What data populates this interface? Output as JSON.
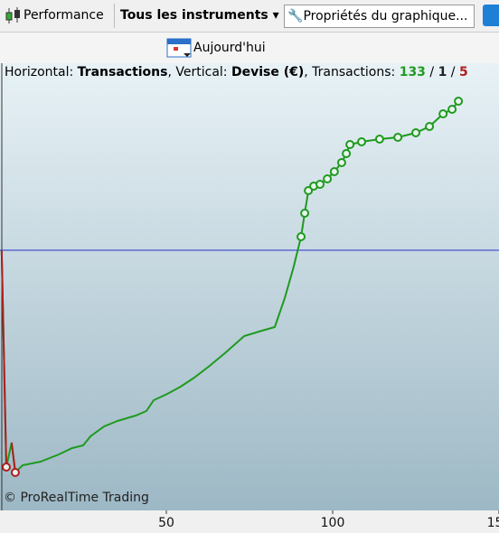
{
  "toolbar": {
    "performance": "Performance",
    "instruments": "Tous les instruments",
    "properties": "Propriétés du graphique..."
  },
  "date_button": "Aujourd'hui",
  "info": {
    "h_label": "Horizontal: ",
    "h_value": "Transactions",
    "v_label": ", Vertical: ",
    "v_value": "Devise (€)",
    "t_label": ", Transactions: ",
    "total": 133,
    "sep": " / ",
    "neutral": 1,
    "losing": 5
  },
  "chart_data": {
    "type": "line",
    "copyright": "© ProRealTime Trading",
    "x": [
      0.5,
      1.9,
      3.5,
      4.6,
      6.8,
      12.2,
      17.7,
      21.7,
      25,
      27.2,
      31.3,
      35.3,
      40.8,
      44,
      46.2,
      50.3,
      54.3,
      58.4,
      63,
      67.9,
      73.4,
      78.8,
      82.6,
      85.6,
      88.3,
      90.5,
      91.6,
      92.7,
      94.3,
      96.2,
      98.4,
      100.5,
      102.7,
      104.1,
      105.2,
      108.7,
      114.1,
      119.6,
      125,
      129.1,
      133.2,
      135.9,
      137.8
    ],
    "values": [
      0,
      -240,
      -213,
      -246,
      -238,
      -234,
      -226,
      -219,
      -216,
      -206,
      -195,
      -189,
      -183,
      -178,
      -166,
      -159,
      -151,
      -141,
      -128,
      -113,
      -95,
      -89,
      -85,
      -53,
      -18,
      15,
      41,
      66,
      71,
      73,
      79,
      87,
      97,
      107,
      117,
      120,
      123,
      125,
      130,
      137,
      151,
      156,
      165
    ],
    "color": "#1f9a1f",
    "loss_color": "#b01e1e",
    "markers": [
      {
        "color": "#1f9a1f",
        "x": [
          90.5,
          91.6,
          92.7,
          94.3,
          96.2,
          98.4,
          100.5,
          102.7,
          104.1,
          105.2,
          108.7,
          114.1,
          119.6,
          125,
          129.1,
          133.2,
          135.9,
          137.8
        ],
        "values": [
          15,
          41,
          66,
          71,
          73,
          79,
          87,
          97,
          107,
          117,
          120,
          123,
          125,
          130,
          137,
          151,
          156,
          165
        ]
      },
      {
        "color": "#b01e1e",
        "x": [
          1.9,
          4.6
        ],
        "values": [
          -240,
          -246
        ]
      }
    ],
    "baseline": 0,
    "baseline_color": "#2233cc",
    "xlim": [
      0,
      150
    ],
    "ylim": [
      -288,
      207
    ],
    "xticks": [
      50,
      100,
      150
    ]
  }
}
